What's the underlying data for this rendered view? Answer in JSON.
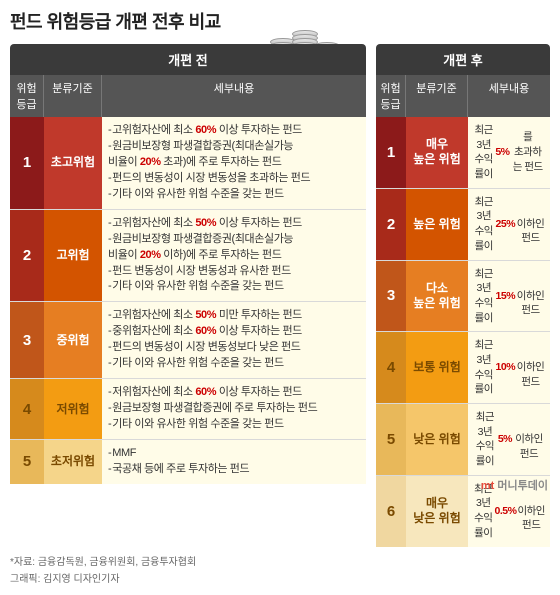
{
  "title": "펀드 위험등급 개편 전후 비교",
  "panels": {
    "before": {
      "header": "개편 전",
      "cols": {
        "grade": "위험등급",
        "class": "분류기준",
        "detail": "세부내용"
      },
      "rows": [
        {
          "grade": "1",
          "class": "초고위험",
          "grade_color": "#8c1a1a",
          "class_color": "#c0392b",
          "text_color": "#ffffff",
          "details": [
            "고위험자산에 최소 <b>60%</b> 이상 투자하는 펀드",
            "원금비보장형 파생결합증권(최대손실가능\n비율이 <b>20%</b> 초과)에 주로 투자하는 펀드",
            "펀드의 변동성이 시장 변동성을 초과하는 펀드",
            "기타 이와 유사한 위험 수준을 갖는 펀드"
          ]
        },
        {
          "grade": "2",
          "class": "고위험",
          "grade_color": "#a82a1a",
          "class_color": "#d35400",
          "text_color": "#ffffff",
          "details": [
            "고위험자산에 최소 <b>50%</b> 이상 투자하는 펀드",
            "원금비보장형 파생결합증권(최대손실가능\n비율이 <b>20%</b> 이하)에 주로 투자하는 펀드",
            "펀드 변동성이 시장 변동성과 유사한 펀드",
            "기타 이와 유사한 위험 수준을 갖는 펀드"
          ]
        },
        {
          "grade": "3",
          "class": "중위험",
          "grade_color": "#c0561a",
          "class_color": "#e67e22",
          "text_color": "#ffffff",
          "details": [
            "고위험자산에 최소 <b>50%</b> 미만 투자하는 펀드",
            "중위험자산에 최소 <b>60%</b> 이상 투자하는 펀드",
            "펀드의 변동성이 시장 변동성보다 낮은 펀드",
            "기타 이와 유사한 위험 수준을 갖는 펀드"
          ]
        },
        {
          "grade": "4",
          "class": "저위험",
          "grade_color": "#d68a1c",
          "class_color": "#f39c12",
          "text_color": "#7a4a00",
          "details": [
            "저위험자산에 최소 <b>60%</b> 이상 투자하는 펀드",
            "원금보장형 파생결합증권에 주로 투자하는 펀드",
            "기타 이와 유사한 위험 수준을 갖는 펀드"
          ]
        },
        {
          "grade": "5",
          "class": "초저위험",
          "grade_color": "#e8b85a",
          "class_color": "#f5d58a",
          "text_color": "#7a4a00",
          "details": [
            "MMF",
            "국공채 등에 주로 투자하는 펀드"
          ]
        }
      ]
    },
    "after": {
      "header": "개편 후",
      "cols": {
        "grade": "위험등급",
        "class": "분류기준",
        "detail": "세부내용"
      },
      "rows": [
        {
          "grade": "1",
          "class": "매우\n높은 위험",
          "grade_color": "#8c1a1a",
          "class_color": "#c0392b",
          "text_color": "#ffffff",
          "detail": "최근 3년\n수익률이 <b>5%</b>를\n초과하는 펀드"
        },
        {
          "grade": "2",
          "class": "높은 위험",
          "grade_color": "#a82a1a",
          "class_color": "#d35400",
          "text_color": "#ffffff",
          "detail": "최근 3년\n수익률이 <b>25%</b>\n이하인 펀드"
        },
        {
          "grade": "3",
          "class": "다소\n높은 위험",
          "grade_color": "#c0561a",
          "class_color": "#e67e22",
          "text_color": "#ffffff",
          "detail": "최근 3년\n수익률이 <b>15%</b>\n이하인 펀드"
        },
        {
          "grade": "4",
          "class": "보통 위험",
          "grade_color": "#d68a1c",
          "class_color": "#f39c12",
          "text_color": "#7a4a00",
          "detail": "최근 3년\n수익률이 <b>10%</b>\n이하인 펀드"
        },
        {
          "grade": "5",
          "class": "낮은 위험",
          "grade_color": "#e8b85a",
          "class_color": "#f5c66a",
          "text_color": "#7a4a00",
          "detail": "최근 3년\n수익률이 <b>5%</b>\n이하인 펀드"
        },
        {
          "grade": "6",
          "class": "매우\n낮은 위험",
          "grade_color": "#f0d7a0",
          "class_color": "#f7e7bd",
          "text_color": "#7a4a00",
          "detail": "최근 3년\n수익률이 <b>0.5%</b>\n이하인 펀드"
        }
      ]
    }
  },
  "footer": {
    "sources": "*자료: 금융감독원, 금융위원회, 금융투자협회",
    "graphic": "그래픽: 김지영 디자인기자"
  },
  "logo": {
    "mt": "mt",
    "text": " 머니투데이"
  },
  "styling": {
    "title_fontsize": 18,
    "header_bg": "#3a3a3a",
    "subheader_bg": "#555555",
    "detail_bg": "#fffce8",
    "highlight_color": "#c00000",
    "body_bg": "#ffffff",
    "font_family": "Malgun Gothic"
  }
}
